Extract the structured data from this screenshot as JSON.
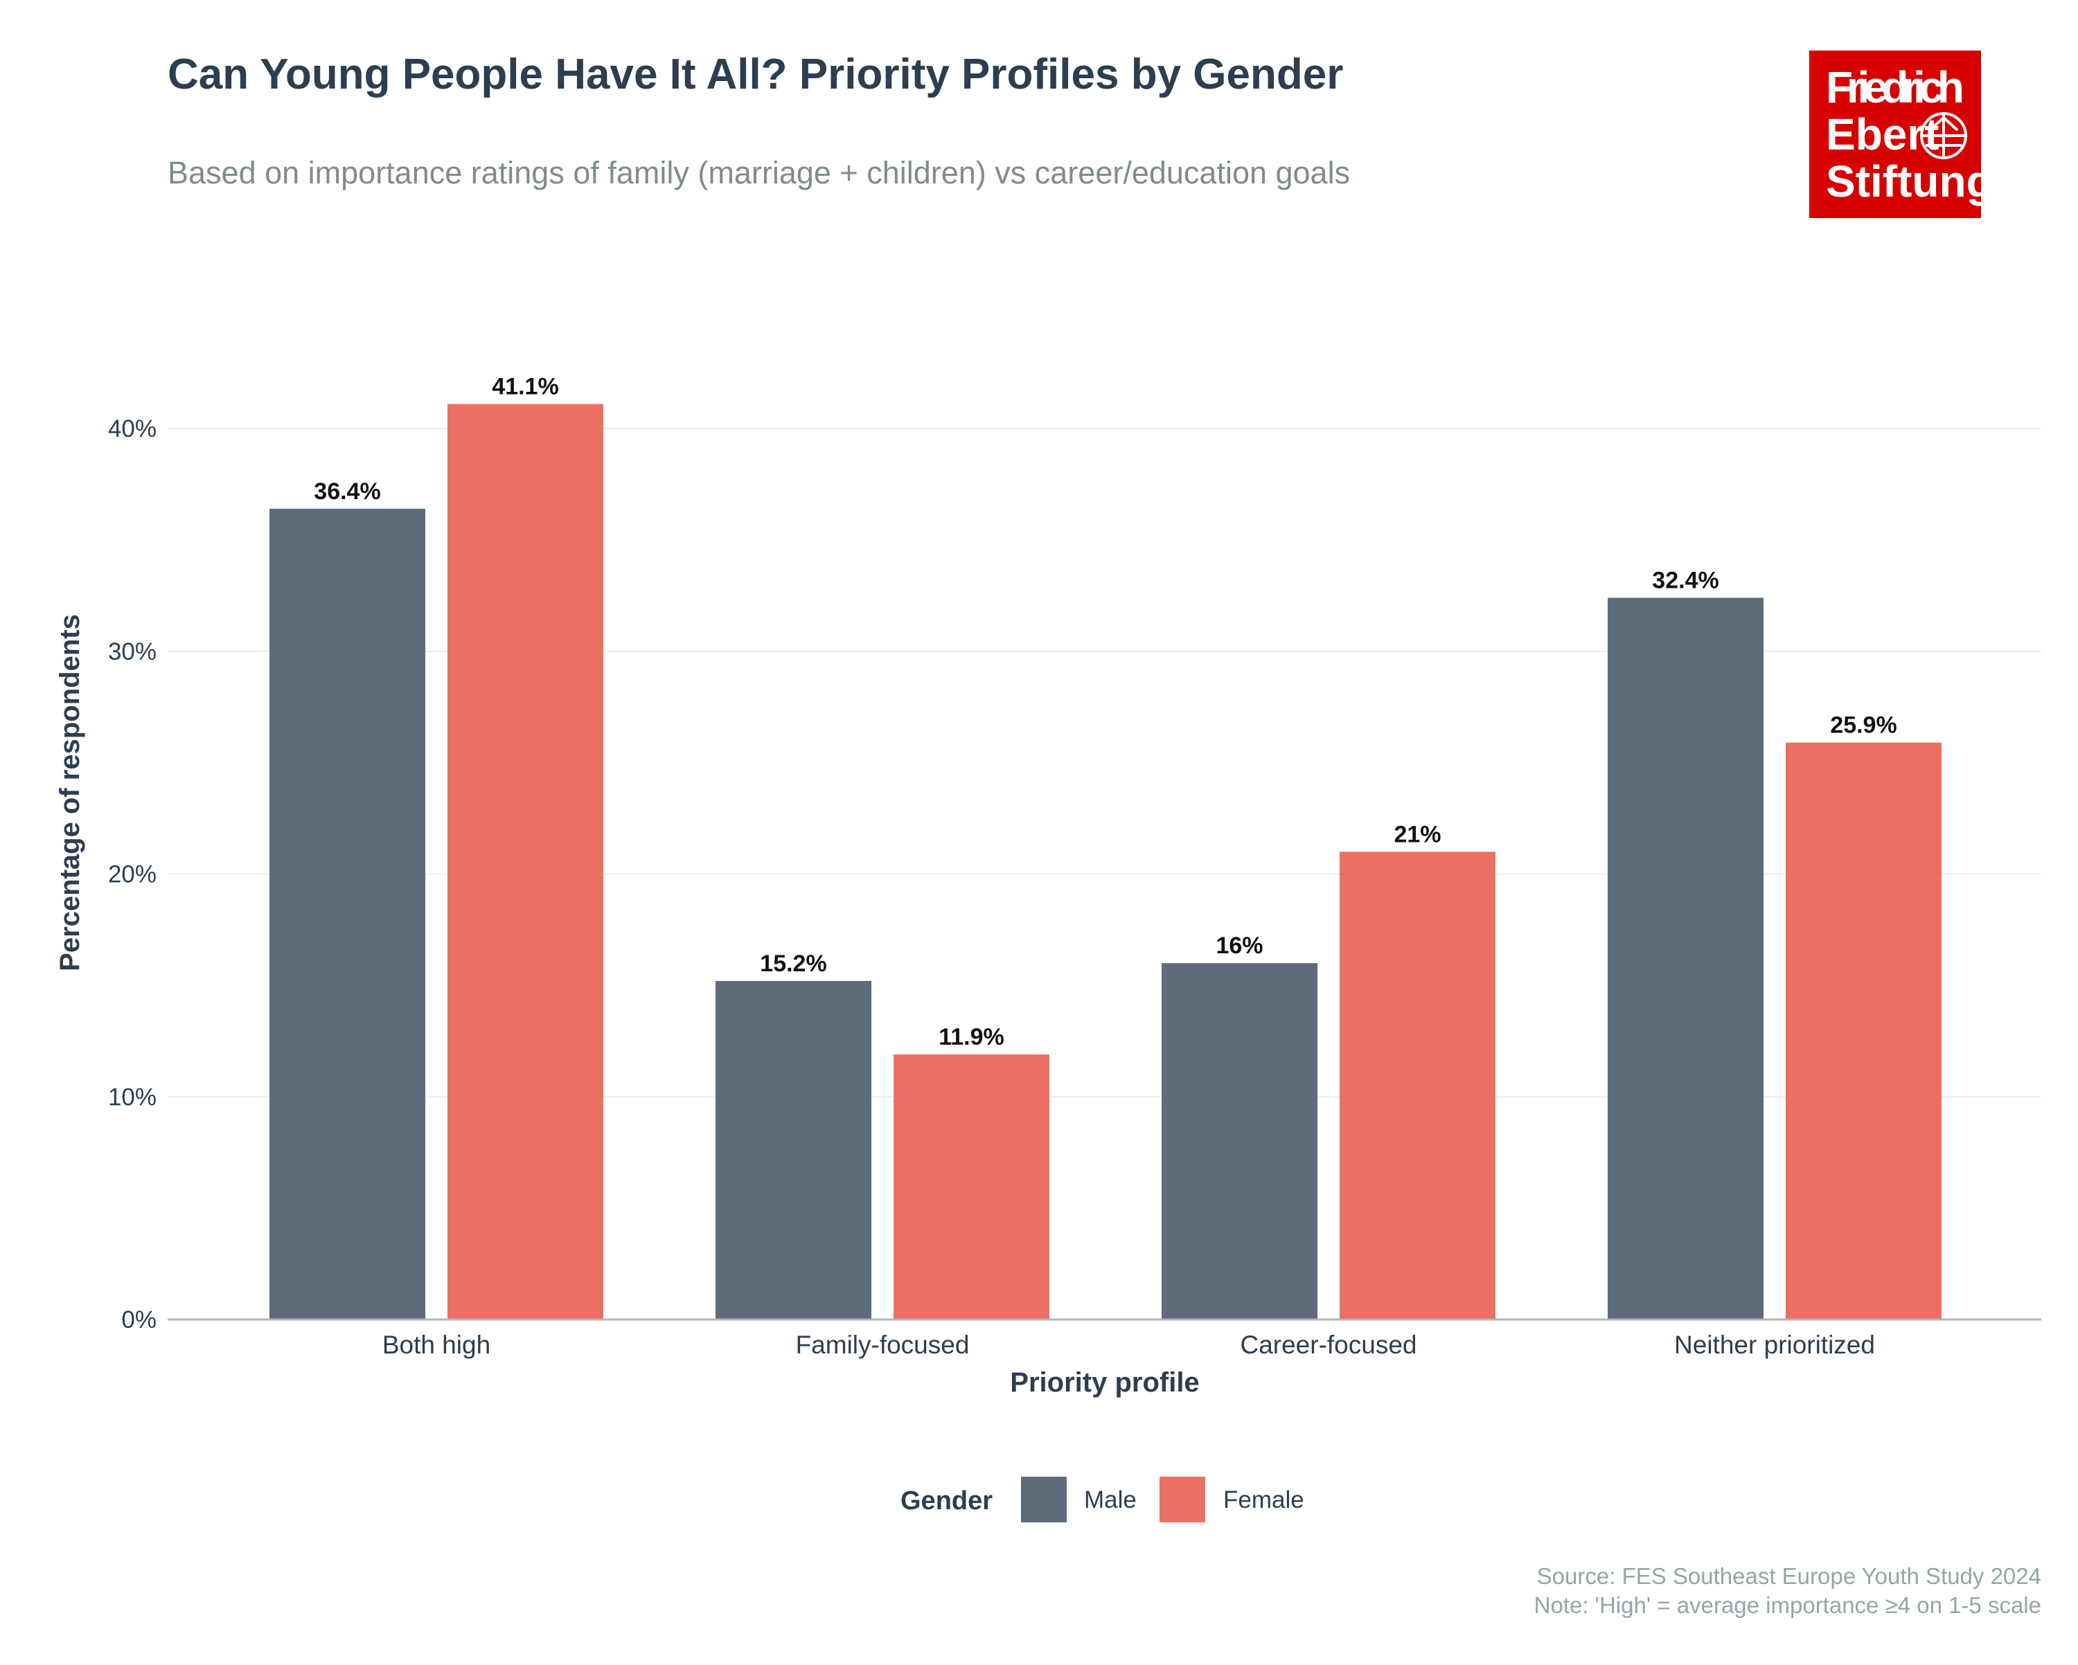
{
  "logo": {
    "lines": [
      "Friedrich",
      "Ebert",
      "Stiftung"
    ],
    "color": "#d70000"
  },
  "chart_data": {
    "type": "bar",
    "title": "Can Young People Have It All? Priority Profiles by Gender",
    "subtitle": "Based on importance ratings of family (marriage + children) vs career/education goals",
    "xlabel": "Priority profile",
    "ylabel": "Percentage of respondents",
    "categories": [
      "Both high",
      "Family-focused",
      "Career-focused",
      "Neither prioritized"
    ],
    "series": [
      {
        "name": "Male",
        "color": "#5d6b7b",
        "values": [
          36.4,
          15.2,
          16,
          32.4
        ],
        "labels": [
          "36.4%",
          "15.2%",
          "16%",
          "32.4%"
        ]
      },
      {
        "name": "Female",
        "color": "#ec6f63",
        "values": [
          41.1,
          11.9,
          21,
          25.9
        ],
        "labels": [
          "41.1%",
          "11.9%",
          "21%",
          "25.9%"
        ]
      }
    ],
    "ylim": [
      0,
      42
    ],
    "yticks": [
      0,
      10,
      20,
      30,
      40
    ],
    "ytick_labels": [
      "0%",
      "10%",
      "20%",
      "30%",
      "40%"
    ],
    "grid": true,
    "legend": {
      "title": "Gender",
      "placement": "bottom"
    },
    "caption": [
      "Source: FES Southeast Europe Youth Study 2024",
      "Note: 'High' = average importance ≥4 on 1-5 scale"
    ]
  }
}
